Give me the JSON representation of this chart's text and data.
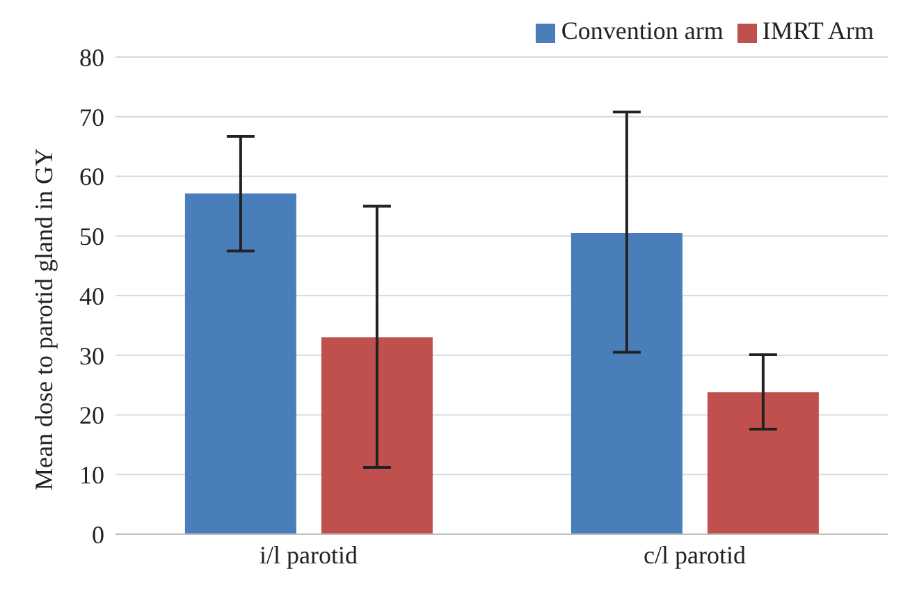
{
  "chart_data": {
    "type": "bar",
    "ylabel": "Mean dose to parotid gland in GY",
    "categories": [
      "i/l parotid",
      "c/l parotid"
    ],
    "series": [
      {
        "name": "Convention arm",
        "color": "#4a7ebb",
        "values": [
          57.1,
          50.5
        ],
        "errors": [
          [
            47.5,
            66.7
          ],
          [
            30.5,
            70.8
          ]
        ]
      },
      {
        "name": "IMRT Arm",
        "color": "#c0504d",
        "values": [
          33.0,
          23.8
        ],
        "errors": [
          [
            11.2,
            55.0
          ],
          [
            17.6,
            30.1
          ]
        ]
      }
    ],
    "ylim": [
      0,
      80
    ],
    "yticks": [
      0,
      10,
      20,
      30,
      40,
      50,
      60,
      70,
      80
    ],
    "grid": "y",
    "legend": "top right"
  }
}
